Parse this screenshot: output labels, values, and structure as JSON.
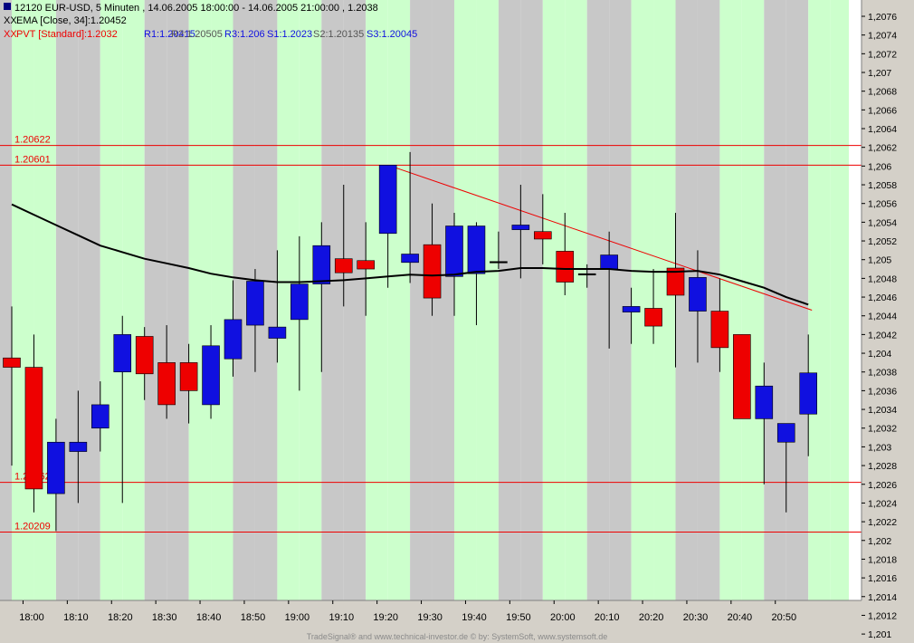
{
  "header": {
    "title": "12120  EUR-USD, 5 Minuten , 14.06.2005 18:00:00 - 14.06.2005 21:00:00 , 1.2038",
    "ema_legend": "EMA [Close, 34]:1.20452",
    "pvt_legend": {
      "name": "PVT [Standard]:1.2032",
      "r1": "R1:1.20415",
      "r2": "R2:1.20505",
      "r3": "R3:1.206",
      "s1": "S1:1.2023",
      "s2": "S2:1.20135",
      "s3": "S3:1.20045"
    }
  },
  "footer": "TradeSignal® and www.technical-investor.de © by: SystemSoft, www.systemsoft.de",
  "colors": {
    "up": "#1010e0",
    "down": "#ee0000",
    "ema": "#000000",
    "hline": "#ee0000",
    "band_light": "#ccffcc",
    "band_dark": "#c8c8c8"
  },
  "chart_data": {
    "type": "candlestick",
    "x_ticks": [
      "18:00",
      "18:10",
      "18:20",
      "18:30",
      "18:40",
      "18:50",
      "19:00",
      "19:10",
      "19:20",
      "19:30",
      "19:40",
      "19:50",
      "20:00",
      "20:10",
      "20:20",
      "20:30",
      "20:40",
      "20:50"
    ],
    "y_ticks": [
      "1,2076",
      "1,2074",
      "1,2072",
      "1,207",
      "1,2068",
      "1,2066",
      "1,2064",
      "1,2062",
      "1,206",
      "1,2058",
      "1,2056",
      "1,2054",
      "1,2052",
      "1,205",
      "1,2048",
      "1,2046",
      "1,2044",
      "1,2042",
      "1,204",
      "1,2038",
      "1,2036",
      "1,2034",
      "1,2032",
      "1,203",
      "1,2028",
      "1,2026",
      "1,2024",
      "1,2022",
      "1,202",
      "1,2018",
      "1,2016",
      "1,2014",
      "1,2012",
      "1,201"
    ],
    "ylim": [
      1.2008,
      1.2078
    ],
    "candles": [
      {
        "t": "18:00",
        "o": 1.20395,
        "h": 1.2045,
        "l": 1.2028,
        "c": 1.20385
      },
      {
        "t": "18:05",
        "o": 1.20385,
        "h": 1.2042,
        "l": 1.2023,
        "c": 1.20255
      },
      {
        "t": "18:10",
        "o": 1.2025,
        "h": 1.2033,
        "l": 1.2021,
        "c": 1.20305
      },
      {
        "t": "18:15",
        "o": 1.20295,
        "h": 1.2036,
        "l": 1.2024,
        "c": 1.20305
      },
      {
        "t": "18:20",
        "o": 1.2032,
        "h": 1.2037,
        "l": 1.20295,
        "c": 1.20345
      },
      {
        "t": "18:25",
        "o": 1.2038,
        "h": 1.2044,
        "l": 1.2024,
        "c": 1.2042
      },
      {
        "t": "18:30",
        "o": 1.20418,
        "h": 1.20428,
        "l": 1.2035,
        "c": 1.20378
      },
      {
        "t": "18:35",
        "o": 1.2039,
        "h": 1.2043,
        "l": 1.2033,
        "c": 1.20345
      },
      {
        "t": "18:40",
        "o": 1.2039,
        "h": 1.2041,
        "l": 1.20325,
        "c": 1.2036
      },
      {
        "t": "18:45",
        "o": 1.20345,
        "h": 1.2043,
        "l": 1.2033,
        "c": 1.20408
      },
      {
        "t": "18:50",
        "o": 1.20394,
        "h": 1.20478,
        "l": 1.20375,
        "c": 1.20436
      },
      {
        "t": "18:55",
        "o": 1.2043,
        "h": 1.2049,
        "l": 1.2038,
        "c": 1.20477
      },
      {
        "t": "19:00",
        "o": 1.20416,
        "h": 1.2051,
        "l": 1.2039,
        "c": 1.20428
      },
      {
        "t": "19:05",
        "o": 1.20436,
        "h": 1.20525,
        "l": 1.2036,
        "c": 1.20474
      },
      {
        "t": "19:10",
        "o": 1.20474,
        "h": 1.2054,
        "l": 1.2038,
        "c": 1.20515
      },
      {
        "t": "19:15",
        "o": 1.20501,
        "h": 1.2058,
        "l": 1.2045,
        "c": 1.20486
      },
      {
        "t": "19:20",
        "o": 1.20499,
        "h": 1.2054,
        "l": 1.2044,
        "c": 1.2049
      },
      {
        "t": "19:25",
        "o": 1.20528,
        "h": 1.20601,
        "l": 1.2047,
        "c": 1.20601
      },
      {
        "t": "19:30",
        "o": 1.20497,
        "h": 1.20615,
        "l": 1.20475,
        "c": 1.20506
      },
      {
        "t": "19:35",
        "o": 1.20516,
        "h": 1.2056,
        "l": 1.2044,
        "c": 1.20459
      },
      {
        "t": "19:40",
        "o": 1.20482,
        "h": 1.2055,
        "l": 1.2044,
        "c": 1.20536
      },
      {
        "t": "19:45",
        "o": 1.20485,
        "h": 1.2054,
        "l": 1.2043,
        "c": 1.20536
      },
      {
        "t": "19:50",
        "o": 1.20498,
        "h": 1.2053,
        "l": 1.2049,
        "c": 1.20498
      },
      {
        "t": "19:55",
        "o": 1.20532,
        "h": 1.2058,
        "l": 1.2048,
        "c": 1.20537
      },
      {
        "t": "20:00",
        "o": 1.2053,
        "h": 1.2057,
        "l": 1.20495,
        "c": 1.20522
      },
      {
        "t": "20:05",
        "o": 1.20509,
        "h": 1.2055,
        "l": 1.20462,
        "c": 1.20476
      },
      {
        "t": "20:10",
        "o": 1.20485,
        "h": 1.20495,
        "l": 1.2047,
        "c": 1.20485
      },
      {
        "t": "20:15",
        "o": 1.2049,
        "h": 1.2053,
        "l": 1.20405,
        "c": 1.20505
      },
      {
        "t": "20:20",
        "o": 1.20444,
        "h": 1.2047,
        "l": 1.2041,
        "c": 1.2045
      },
      {
        "t": "20:25",
        "o": 1.20448,
        "h": 1.2049,
        "l": 1.2041,
        "c": 1.20429
      },
      {
        "t": "20:30",
        "o": 1.20491,
        "h": 1.2055,
        "l": 1.20385,
        "c": 1.20462
      },
      {
        "t": "20:35",
        "o": 1.20445,
        "h": 1.2051,
        "l": 1.2039,
        "c": 1.20481
      },
      {
        "t": "20:40",
        "o": 1.20445,
        "h": 1.2048,
        "l": 1.2038,
        "c": 1.20406
      },
      {
        "t": "20:45",
        "o": 1.2042,
        "h": 1.2042,
        "l": 1.2033,
        "c": 1.2033
      },
      {
        "t": "20:50",
        "o": 1.2033,
        "h": 1.2039,
        "l": 1.2026,
        "c": 1.20365
      },
      {
        "t": "20:55",
        "o": 1.20305,
        "h": 1.2032,
        "l": 1.2023,
        "c": 1.20325
      },
      {
        "t": "21:00",
        "o": 1.20335,
        "h": 1.2042,
        "l": 1.2029,
        "c": 1.20379
      }
    ],
    "ema_values": [
      1.20559,
      1.20548,
      1.20537,
      1.20526,
      1.20515,
      1.20508,
      1.20501,
      1.20496,
      1.20491,
      1.20485,
      1.20481,
      1.20478,
      1.20476,
      1.20476,
      1.20477,
      1.20478,
      1.2048,
      1.20482,
      1.20484,
      1.20483,
      1.20484,
      1.20487,
      1.20488,
      1.20491,
      1.20491,
      1.2049,
      1.2049,
      1.2049,
      1.20488,
      1.20487,
      1.20487,
      1.20488,
      1.20484,
      1.20477,
      1.2047,
      1.2046,
      1.20452
    ],
    "hlines": [
      {
        "label": "1.20622",
        "value": 1.20622
      },
      {
        "label": "1.20601",
        "value": 1.20601
      },
      {
        "label": "1.20262",
        "value": 1.20262
      },
      {
        "label": "1.20209",
        "value": 1.20209
      }
    ],
    "trendline": {
      "from_t": "19:25",
      "from_v": 1.20601,
      "to_t": "21:00",
      "to_v": 1.20446
    }
  }
}
